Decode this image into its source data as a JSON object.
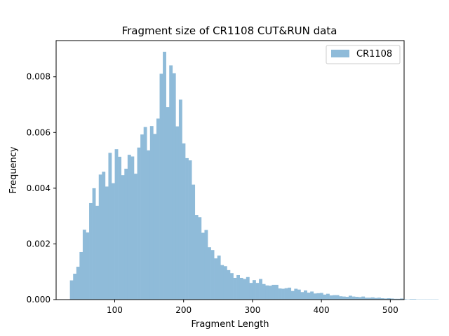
{
  "chart_data": {
    "type": "bar",
    "title": "Fragment size of CR1108 CUT&RUN data",
    "xlabel": "Fragment Length",
    "ylabel": "Frequency",
    "xlim": [
      15,
      520
    ],
    "ylim": [
      0,
      0.0093
    ],
    "xticks": [
      100,
      200,
      300,
      400,
      500
    ],
    "yticks": [
      0.0,
      0.002,
      0.004,
      0.006,
      0.008
    ],
    "ytick_labels": [
      "0.000",
      "0.002",
      "0.004",
      "0.006",
      "0.008"
    ],
    "grid": false,
    "legend_placement": "top-right",
    "bin_start": 35,
    "bin_width": 4.65,
    "series": [
      {
        "name": "CR1108",
        "color": "#8fbbd9",
        "values": [
          0.00069,
          0.00093,
          0.00118,
          0.00171,
          0.00251,
          0.00241,
          0.00347,
          0.004,
          0.00337,
          0.00449,
          0.00459,
          0.00406,
          0.00527,
          0.00418,
          0.0054,
          0.00513,
          0.00447,
          0.0047,
          0.0052,
          0.00514,
          0.00452,
          0.00546,
          0.00593,
          0.0062,
          0.00536,
          0.00623,
          0.00595,
          0.0065,
          0.00811,
          0.0089,
          0.00691,
          0.00841,
          0.00813,
          0.00622,
          0.00718,
          0.00561,
          0.00508,
          0.005,
          0.00413,
          0.00304,
          0.00296,
          0.0024,
          0.0025,
          0.00188,
          0.00178,
          0.00148,
          0.00158,
          0.00124,
          0.0012,
          0.00106,
          0.00095,
          0.00078,
          0.00088,
          0.00078,
          0.00074,
          0.00081,
          0.0006,
          0.0007,
          0.0006,
          0.00074,
          0.00056,
          0.00051,
          0.0005,
          0.00053,
          0.00053,
          0.0004,
          0.00039,
          0.00041,
          0.00043,
          0.00031,
          0.00039,
          0.00036,
          0.00027,
          0.00033,
          0.00025,
          0.00029,
          0.00022,
          0.00023,
          0.00024,
          0.00018,
          0.00021,
          0.00015,
          0.00016,
          0.00016,
          0.00012,
          0.00011,
          0.0001,
          0.00014,
          0.00011,
          0.0001,
          9e-05,
          0.00011,
          7e-05,
          7e-05,
          8e-05,
          6e-05,
          7e-05,
          5e-05,
          4e-05,
          5e-05,
          4e-05,
          3e-05,
          3e-05,
          4e-05,
          2e-05,
          1e-05,
          2e-05,
          2e-05,
          1e-05,
          1e-05,
          1e-05,
          1e-05,
          1e-05,
          1e-05,
          1e-05
        ]
      }
    ]
  }
}
